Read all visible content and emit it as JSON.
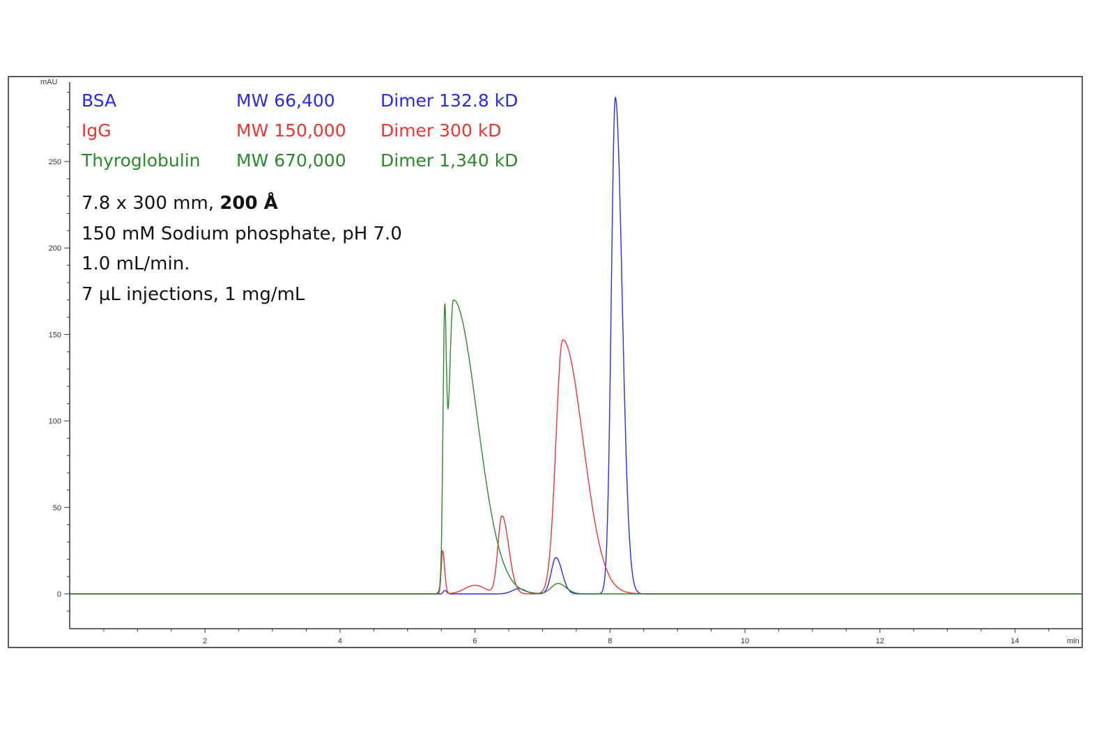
{
  "chart_data": {
    "type": "line",
    "xlabel": "min",
    "ylabel": "mAU",
    "xlim": [
      0,
      15
    ],
    "ylim": [
      -20,
      296
    ],
    "x_ticks": [
      2,
      4,
      6,
      8,
      10,
      12,
      14
    ],
    "y_ticks": [
      0,
      50,
      100,
      150,
      200,
      250
    ],
    "grid": false,
    "legend_position": "top-left",
    "series": [
      {
        "name": "BSA",
        "mw": "MW 66,400",
        "dimer": "Dimer 132.8 kD",
        "color": "#2a2aee",
        "peaks": [
          {
            "rt": 5.55,
            "height": 2,
            "width_left": 0.02,
            "width_right": 0.03
          },
          {
            "rt": 6.65,
            "height": 3,
            "width_left": 0.1,
            "width_right": 0.1
          },
          {
            "rt": 7.2,
            "height": 21,
            "width_left": 0.07,
            "width_right": 0.09
          },
          {
            "rt": 8.08,
            "height": 287,
            "width_left": 0.06,
            "width_right": 0.1
          }
        ]
      },
      {
        "name": "IgG",
        "mw": "MW 150,000",
        "dimer": "Dimer 300 kD",
        "color": "#ee3333",
        "peaks": [
          {
            "rt": 5.52,
            "height": 25,
            "width_left": 0.02,
            "width_right": 0.03
          },
          {
            "rt": 6.0,
            "height": 5,
            "width_left": 0.15,
            "width_right": 0.15
          },
          {
            "rt": 6.4,
            "height": 45,
            "width_left": 0.06,
            "width_right": 0.1
          },
          {
            "rt": 7.3,
            "height": 147,
            "width_left": 0.1,
            "width_right": 0.3
          }
        ]
      },
      {
        "name": "Thyroglobulin",
        "mw": "MW 670,000",
        "dimer": "Dimer 1,340 kD",
        "color": "#2a8a2a",
        "peaks": [
          {
            "rt": 5.55,
            "height": 136,
            "width_left": 0.025,
            "width_right": 0.025
          },
          {
            "rt": 5.68,
            "height": 170,
            "width_left": 0.07,
            "width_right": 0.35
          },
          {
            "rt": 7.23,
            "height": 6,
            "width_left": 0.1,
            "width_right": 0.12
          }
        ]
      }
    ],
    "annotations": {
      "column_prefix": "7.8 x 300 mm, ",
      "column_pore": "200 Å",
      "buffer": "150 mM Sodium phosphate, pH 7.0",
      "flow": "1.0 mL/min.",
      "injection": "7 µL injections, 1 mg/mL"
    }
  }
}
